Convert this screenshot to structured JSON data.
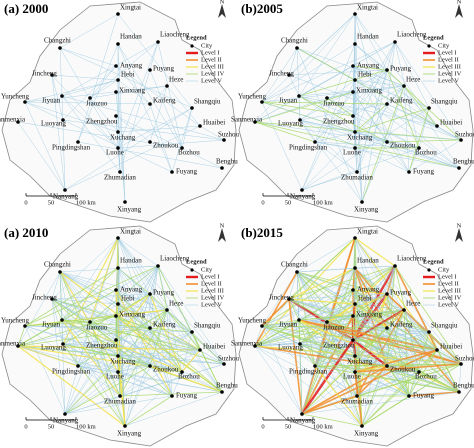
{
  "panels": [
    {
      "title": "(a) 2000"
    },
    {
      "title": "(b)2005"
    },
    {
      "title": "(a) 2010"
    },
    {
      "title": "(b)2015"
    }
  ],
  "cities": [
    "Xingtai",
    "Changzhi",
    "Handan",
    "Liaocheng",
    "Anyang",
    "Puyang",
    "Jincheng",
    "Hebi",
    "Heze",
    "Xinxiang",
    "Jiaozuo",
    "Jiyuan",
    "Yuncheng",
    "Sanmenxia",
    "Luoyang",
    "Zhengzhou",
    "Kaifeng",
    "Shangqiu",
    "Huaibei",
    "Xuchang",
    "Zhoukou",
    "Pingdingshan",
    "Luohe",
    "Bozhou",
    "Suzhou",
    "Bengbu",
    "Zhumadian",
    "Fuyang",
    "Nanyang",
    "Xinyang"
  ],
  "legend": {
    "title": "Legend",
    "items": [
      "City",
      "Level I",
      "Level II",
      "Level III",
      "Level IV",
      "Level V"
    ]
  },
  "north": "N",
  "scale": [
    "0",
    "50",
    "100 km"
  ]
}
